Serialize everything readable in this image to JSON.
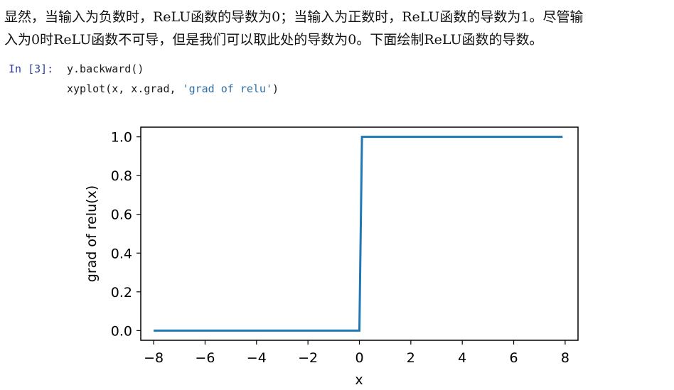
{
  "paragraph": {
    "line1": "显然，当输入为负数时，ReLU函数的导数为0；当输入为正数时，ReLU函数的导数为1。尽管输",
    "line2": "入为0时ReLU函数不可导，但是我们可以取此处的导数为0。下面绘制ReLU函数的导数。"
  },
  "cell": {
    "prompt": "In [3]:",
    "line1": "y.backward()",
    "line2_prefix": "xyplot(x, x.grad, ",
    "line2_string": "'grad of relu'",
    "line2_suffix": ")"
  },
  "chart_data": {
    "type": "line",
    "xlabel": "x",
    "ylabel": "grad of relu(x)",
    "xlim": [
      -8.5,
      8.5
    ],
    "ylim": [
      -0.05,
      1.05
    ],
    "xticks": [
      "−8",
      "−6",
      "−4",
      "−2",
      "0",
      "2",
      "4",
      "6",
      "8"
    ],
    "xtick_values": [
      -8,
      -6,
      -4,
      -2,
      0,
      2,
      4,
      6,
      8
    ],
    "yticks": [
      "0.0",
      "0.2",
      "0.4",
      "0.6",
      "0.8",
      "1.0"
    ],
    "ytick_values": [
      0,
      0.2,
      0.4,
      0.6,
      0.8,
      1.0
    ],
    "series": [
      {
        "x": [
          -8.0,
          0.0,
          0.1,
          7.9
        ],
        "y": [
          0.0,
          0.0,
          1.0,
          1.0
        ],
        "color": "#1f77b4"
      }
    ]
  }
}
